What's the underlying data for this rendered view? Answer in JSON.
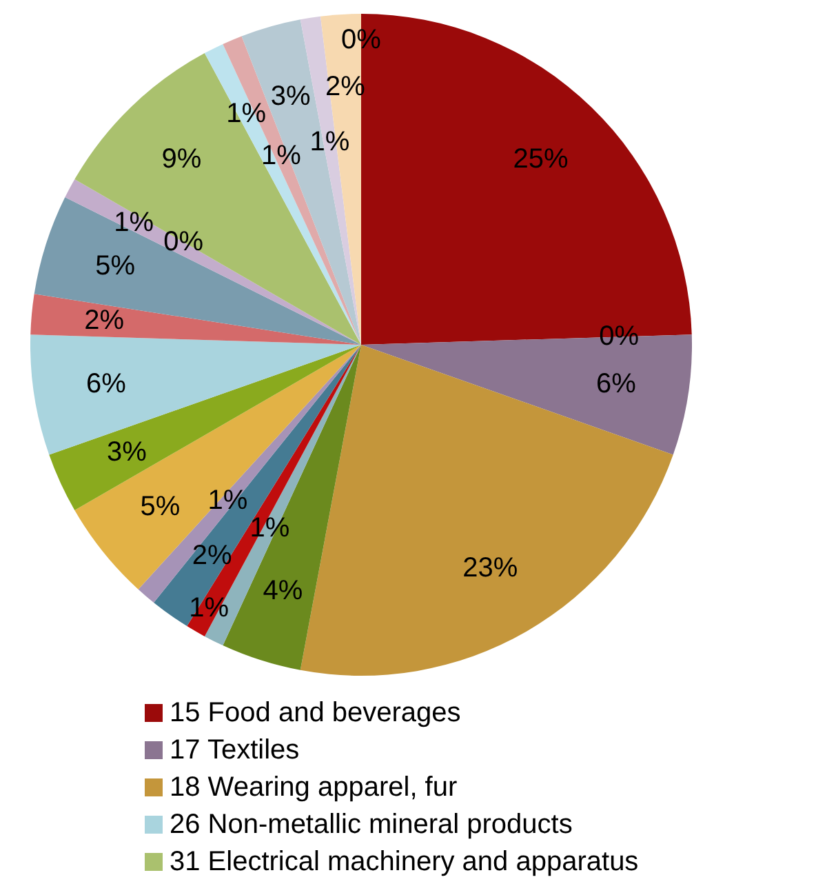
{
  "chart_data": {
    "type": "pie",
    "categories": [
      "15 Food and beverages",
      null,
      "17 Textiles",
      "18 Wearing apparel, fur",
      null,
      null,
      null,
      null,
      null,
      null,
      null,
      "26 Non-metallic mineral products",
      null,
      null,
      null,
      null,
      "31 Electrical machinery and apparatus",
      null,
      null,
      null,
      null,
      null,
      null
    ],
    "values": [
      25,
      0,
      6,
      23,
      4,
      1,
      1,
      2,
      1,
      5,
      3,
      6,
      2,
      5,
      1,
      0,
      9,
      1,
      1,
      3,
      1,
      2,
      0
    ],
    "colors": [
      "#9b0a0a",
      "#3d6e8a",
      "#8b7591",
      "#c4963b",
      "#6b8a1e",
      "#8eb4bd",
      "#c00d0d",
      "#457b93",
      "#a693b7",
      "#e2b246",
      "#8aaa1e",
      "#a9d4de",
      "#d46a6a",
      "#7a9cae",
      "#c3adcb",
      "#8a6e9a",
      "#aac16e",
      "#bde3ee",
      "#e0aaaa",
      "#b6c9d3",
      "#d9cde0",
      "#f7d9b0",
      "#f0c89a"
    ],
    "value_labels": [
      "25%",
      "0%",
      "6%",
      "23%",
      "4%",
      "1%",
      "1%",
      "2%",
      "1%",
      "5%",
      "3%",
      "6%",
      "2%",
      "5%",
      "1%",
      "0%",
      "9%",
      "1%",
      "1%",
      "3%",
      "1%",
      "2%",
      "0%"
    ],
    "legend": "bottom"
  }
}
